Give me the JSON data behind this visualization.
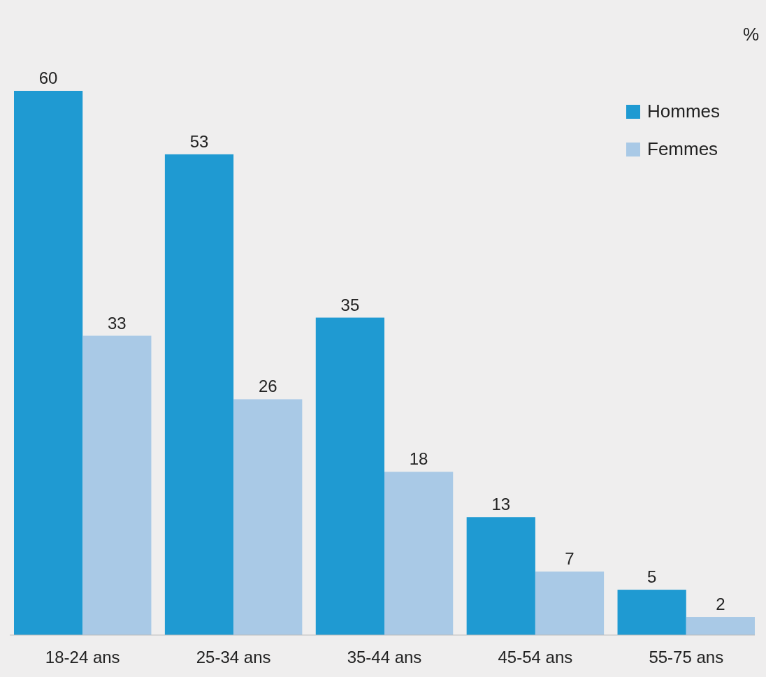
{
  "chart_data": {
    "type": "bar",
    "ylabel": "%",
    "categories": [
      "18-24 ans",
      "25-34 ans",
      "35-44 ans",
      "45-54 ans",
      "55-75 ans"
    ],
    "series": [
      {
        "name": "Hommes",
        "color": "#1f9ad2",
        "values": [
          60,
          53,
          35,
          13,
          5
        ]
      },
      {
        "name": "Femmes",
        "color": "#a9c9e6",
        "values": [
          33,
          26,
          18,
          7,
          2
        ]
      }
    ],
    "data_labels": true,
    "legend": "top right",
    "grid": false
  }
}
